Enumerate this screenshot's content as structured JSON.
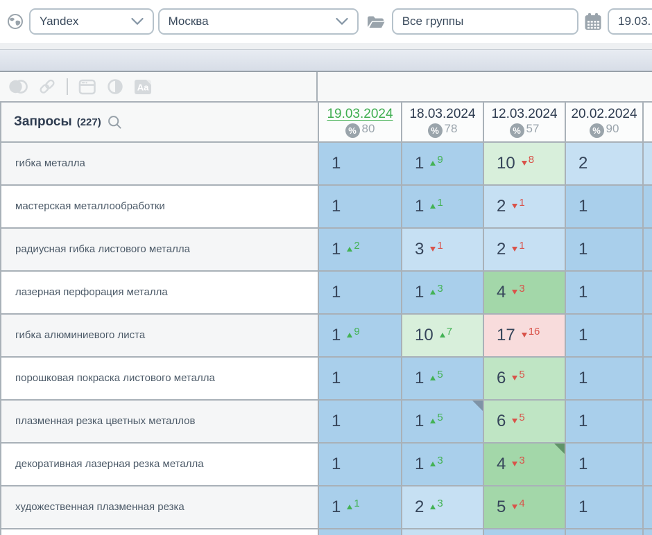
{
  "topbar": {
    "search_engine": "Yandex",
    "region": "Москва",
    "groups_filter": "Все группы",
    "date_value": "19.03."
  },
  "toolbar": {
    "aa_label": "Aa"
  },
  "table": {
    "header": {
      "queries_label": "Запросы",
      "queries_count": "(227)",
      "percent_sign": "%",
      "columns": [
        {
          "date": "19.03.2024",
          "percent": "80",
          "active": true
        },
        {
          "date": "18.03.2024",
          "percent": "78",
          "active": false
        },
        {
          "date": "12.03.2024",
          "percent": "57",
          "active": false
        },
        {
          "date": "20.02.2024",
          "percent": "90",
          "active": false
        }
      ]
    },
    "rows": [
      {
        "keyword": "гибка металла",
        "cells": [
          {
            "value": "1",
            "tone": "b1"
          },
          {
            "value": "1",
            "tone": "b1",
            "change": {
              "dir": "up",
              "amount": "9"
            }
          },
          {
            "value": "10",
            "tone": "g3",
            "change": {
              "dir": "down",
              "amount": "8"
            }
          },
          {
            "value": "2",
            "tone": "b2"
          }
        ]
      },
      {
        "keyword": "мастерская металлообработки",
        "cells": [
          {
            "value": "1",
            "tone": "b1"
          },
          {
            "value": "1",
            "tone": "b1",
            "change": {
              "dir": "up",
              "amount": "1"
            }
          },
          {
            "value": "2",
            "tone": "b2",
            "change": {
              "dir": "down",
              "amount": "1"
            }
          },
          {
            "value": "1",
            "tone": "b1"
          }
        ]
      },
      {
        "keyword": "радиусная гибка листового металла",
        "cells": [
          {
            "value": "1",
            "tone": "b1",
            "change": {
              "dir": "up",
              "amount": "2"
            }
          },
          {
            "value": "3",
            "tone": "b2",
            "change": {
              "dir": "down",
              "amount": "1"
            }
          },
          {
            "value": "2",
            "tone": "b2",
            "change": {
              "dir": "down",
              "amount": "1"
            }
          },
          {
            "value": "1",
            "tone": "b1"
          }
        ]
      },
      {
        "keyword": "лазерная перфорация металла",
        "cells": [
          {
            "value": "1",
            "tone": "b1"
          },
          {
            "value": "1",
            "tone": "b1",
            "change": {
              "dir": "up",
              "amount": "3"
            }
          },
          {
            "value": "4",
            "tone": "g1",
            "change": {
              "dir": "down",
              "amount": "3"
            }
          },
          {
            "value": "1",
            "tone": "b1"
          }
        ]
      },
      {
        "keyword": "гибка алюминиевого листа",
        "cells": [
          {
            "value": "1",
            "tone": "b1",
            "change": {
              "dir": "up",
              "amount": "9"
            }
          },
          {
            "value": "10",
            "tone": "g3",
            "change": {
              "dir": "up",
              "amount": "7"
            }
          },
          {
            "value": "17",
            "tone": "r1",
            "change": {
              "dir": "down",
              "amount": "16"
            }
          },
          {
            "value": "1",
            "tone": "b1"
          }
        ]
      },
      {
        "keyword": "порошковая покраска листового металла",
        "cells": [
          {
            "value": "1",
            "tone": "b1"
          },
          {
            "value": "1",
            "tone": "b1",
            "change": {
              "dir": "up",
              "amount": "5"
            }
          },
          {
            "value": "6",
            "tone": "g2",
            "change": {
              "dir": "down",
              "amount": "5"
            }
          },
          {
            "value": "1",
            "tone": "b1"
          }
        ]
      },
      {
        "keyword": "плазменная резка цветных металлов",
        "cells": [
          {
            "value": "1",
            "tone": "b1"
          },
          {
            "value": "1",
            "tone": "b1",
            "change": {
              "dir": "up",
              "amount": "5"
            },
            "marker": "blue"
          },
          {
            "value": "6",
            "tone": "g2",
            "change": {
              "dir": "down",
              "amount": "5"
            }
          },
          {
            "value": "1",
            "tone": "b1"
          }
        ]
      },
      {
        "keyword": "декоративная лазерная резка металла",
        "cells": [
          {
            "value": "1",
            "tone": "b1"
          },
          {
            "value": "1",
            "tone": "b1",
            "change": {
              "dir": "up",
              "amount": "3"
            }
          },
          {
            "value": "4",
            "tone": "g1",
            "change": {
              "dir": "down",
              "amount": "3"
            },
            "marker": "green"
          },
          {
            "value": "1",
            "tone": "b1"
          }
        ]
      },
      {
        "keyword": "художественная плазменная резка",
        "cells": [
          {
            "value": "1",
            "tone": "b1",
            "change": {
              "dir": "up",
              "amount": "1"
            }
          },
          {
            "value": "2",
            "tone": "b2",
            "change": {
              "dir": "up",
              "amount": "3"
            }
          },
          {
            "value": "5",
            "tone": "g1",
            "change": {
              "dir": "down",
              "amount": "4"
            }
          },
          {
            "value": "1",
            "tone": "b1"
          }
        ]
      }
    ],
    "edge_column_tones": [
      "b2",
      "b1",
      "b1",
      "b1",
      "b1",
      "b1",
      "b1",
      "b1",
      "b1"
    ],
    "bottom_row_tones": [
      "b1",
      "b2",
      "b1",
      "b1",
      "b1"
    ]
  },
  "colors": {
    "active_date": "#3fae50",
    "change_up": "#43b254",
    "change_down": "#d9534a",
    "pos_top1": "#a9cfeb",
    "pos_top3": "#c6e0f3",
    "pos_top5": "#a3d7a9",
    "pos_top10_mid": "#bfe5c4",
    "pos_top10_light": "#d8efdb",
    "pos_out": "#f8dcdc"
  }
}
